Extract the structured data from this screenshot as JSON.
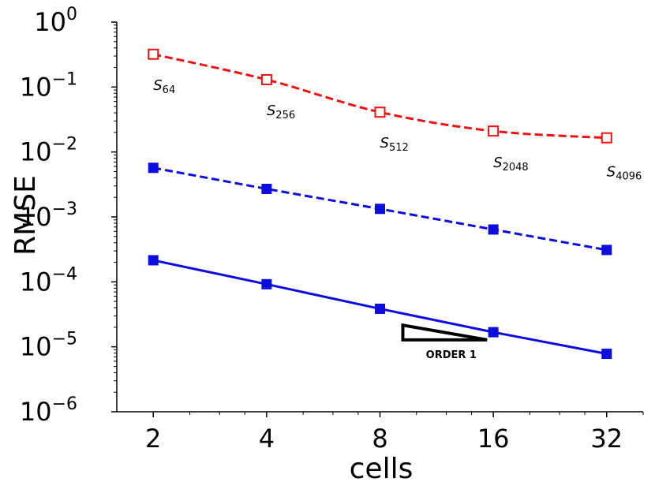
{
  "chart_data": {
    "type": "line",
    "xlabel": "cells",
    "ylabel": "RMSE",
    "x_scale": "log2",
    "y_scale": "log10",
    "xlim": [
      1.6,
      40
    ],
    "ylim": [
      1e-06,
      1
    ],
    "x_ticks": [
      2,
      4,
      8,
      16,
      32
    ],
    "y_ticks": [
      {
        "base": "10",
        "exp": "0",
        "value": 1
      },
      {
        "base": "10",
        "exp": "−1",
        "value": 0.1
      },
      {
        "base": "10",
        "exp": "−2",
        "value": 0.01
      },
      {
        "base": "10",
        "exp": "−3",
        "value": 0.001
      },
      {
        "base": "10",
        "exp": "−4",
        "value": 0.0001
      },
      {
        "base": "10",
        "exp": "−5",
        "value": 1e-05
      },
      {
        "base": "10",
        "exp": "−6",
        "value": 1e-06
      }
    ],
    "grid": false,
    "series": [
      {
        "x": [
          2,
          4,
          8,
          16,
          32
        ],
        "values": [
          0.32,
          0.13,
          0.041,
          0.021,
          0.0165
        ],
        "color": "#ee1111",
        "line_style": "dashed",
        "marker": "open-square"
      },
      {
        "x": [
          2,
          4,
          8,
          16,
          32
        ],
        "values": [
          0.0057,
          0.0027,
          0.00133,
          0.00064,
          0.00031
        ],
        "color": "#0d0ddd",
        "line_style": "dashed",
        "marker": "filled-square"
      },
      {
        "x": [
          2,
          4,
          8,
          16,
          32
        ],
        "values": [
          0.000215,
          9.2e-05,
          3.85e-05,
          1.68e-05,
          7.8e-06
        ],
        "color": "#0d0ddd",
        "line_style": "solid",
        "marker": "filled-square"
      }
    ],
    "annotations": [
      {
        "base": "S",
        "sub": "64",
        "x": 2,
        "y": 0.09
      },
      {
        "base": "S",
        "sub": "256",
        "x": 4,
        "y": 0.037
      },
      {
        "base": "S",
        "sub": "512",
        "x": 8,
        "y": 0.0117
      },
      {
        "base": "S",
        "sub": "2048",
        "x": 16,
        "y": 0.0058
      },
      {
        "base": "S",
        "sub": "4096",
        "x": 32,
        "y": 0.0042
      }
    ],
    "order_triangle": {
      "label": "ORDER 1",
      "x_start": 9.2,
      "x_end": 15.4,
      "y_top": 2.15e-05,
      "y_bottom": 1.28e-05
    }
  }
}
